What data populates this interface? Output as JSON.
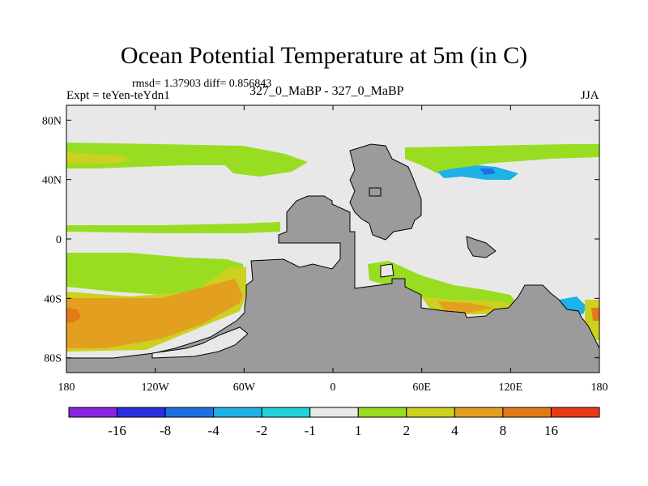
{
  "title": "Ocean Potential Temperature at 5m (in C)",
  "stats": "rmsd= 1.37903 diff= 0.856843",
  "experiment": "Expt = teYen-teYdn1",
  "runs": "327_0_MaBP - 327_0_MaBP",
  "season": "JJA",
  "colors": {
    "land": "#9b9b9b",
    "neutral": "#e8e8e8",
    "c_1_2": "#99dd22",
    "c_2_4": "#ccd020",
    "c_4_8": "#e3a020",
    "c_8_16": "#e27a18",
    "c_16p": "#e83a16",
    "c_m2_m1": "#20d2d8",
    "c_m4_m2": "#1eb2e6",
    "c_m8_m4": "#1f6fe2",
    "c_m16_m8": "#2a2fe0",
    "c_m16": "#8a23e2"
  },
  "chart_data": {
    "type": "heatmap",
    "title": "Ocean Potential Temperature at 5m (in C)",
    "x_ticks": [
      {
        "value": -180,
        "label": "180"
      },
      {
        "value": -120,
        "label": "120W"
      },
      {
        "value": -60,
        "label": "60W"
      },
      {
        "value": 0,
        "label": "0"
      },
      {
        "value": 60,
        "label": "60E"
      },
      {
        "value": 120,
        "label": "120E"
      },
      {
        "value": 180,
        "label": "180"
      }
    ],
    "y_ticks": [
      {
        "value": 80,
        "label": "80N"
      },
      {
        "value": 40,
        "label": "40N"
      },
      {
        "value": 0,
        "label": "0"
      },
      {
        "value": -40,
        "label": "40S"
      },
      {
        "value": -80,
        "label": "80S"
      }
    ],
    "xlim": [
      -180,
      180
    ],
    "ylim": [
      -90,
      90
    ],
    "colorbar": {
      "labels": [
        "-16",
        "-8",
        "-4",
        "-2",
        "-1",
        "1",
        "2",
        "4",
        "8",
        "16"
      ],
      "bins": [
        {
          "color": "#8a23e2"
        },
        {
          "color": "#2a2fe0"
        },
        {
          "color": "#1f6fe2"
        },
        {
          "color": "#1eb2e6"
        },
        {
          "color": "#20d2d8"
        },
        {
          "color": "#e8e8e8"
        },
        {
          "color": "#99dd22"
        },
        {
          "color": "#ccd020"
        },
        {
          "color": "#e3a020"
        },
        {
          "color": "#e27a18"
        },
        {
          "color": "#e83a16"
        }
      ]
    }
  }
}
